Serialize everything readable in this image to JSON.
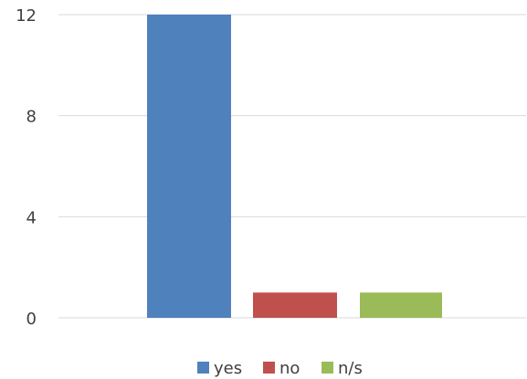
{
  "chart_data": {
    "type": "bar",
    "categories": [
      "yes",
      "no",
      "n/s"
    ],
    "series": [
      {
        "name": "yes",
        "value": 12,
        "color": "#4F81BD"
      },
      {
        "name": "no",
        "value": 1,
        "color": "#C0504D"
      },
      {
        "name": "n/s",
        "value": 1,
        "color": "#9BBB59"
      }
    ],
    "ylim": [
      0,
      12
    ],
    "yticks": [
      0,
      4,
      8,
      12
    ],
    "grid": true,
    "legend_position": "bottom",
    "title": "",
    "xlabel": "",
    "ylabel": ""
  }
}
